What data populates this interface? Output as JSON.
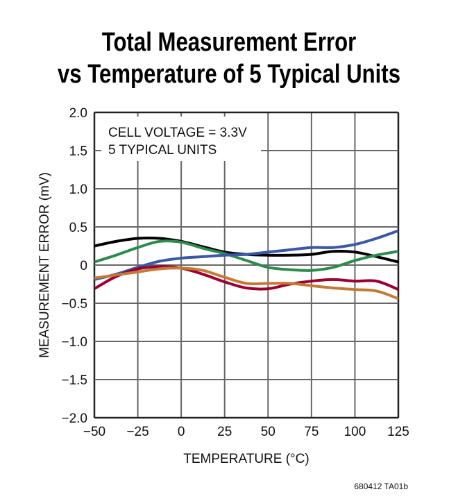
{
  "chart_data": {
    "type": "line",
    "title": [
      "Total Measurement Error",
      "vs Temperature of 5 Typical Units"
    ],
    "xlabel": "TEMPERATURE (°C)",
    "ylabel": "MEASUREMENT ERROR (mV)",
    "xlim": [
      -50,
      125
    ],
    "ylim": [
      -2.0,
      2.0
    ],
    "xticks": [
      -50,
      -25,
      0,
      25,
      50,
      75,
      100,
      125
    ],
    "xtick_labels": [
      "−50",
      "−25",
      "0",
      "25",
      "50",
      "75",
      "100",
      "125"
    ],
    "yticks": [
      2.0,
      1.5,
      1.0,
      0.5,
      0,
      -0.5,
      -1.0,
      -1.5,
      -2.0
    ],
    "ytick_labels": [
      "2.0",
      "1.5",
      "1.0",
      "0.5",
      "0",
      "−0.5",
      "−1.0",
      "−1.5",
      "−2.0"
    ],
    "grid": true,
    "annotations": [
      "CELL VOLTAGE = 3.3V",
      "5 TYPICAL UNITS"
    ],
    "figure_code": "680412 TA01b",
    "x": [
      -50,
      -37.5,
      -25,
      -12.5,
      0,
      12.5,
      25,
      37.5,
      50,
      62.5,
      75,
      87.5,
      100,
      112.5,
      125
    ],
    "series": [
      {
        "color": "#000000",
        "values": [
          0.25,
          0.31,
          0.35,
          0.35,
          0.31,
          0.24,
          0.17,
          0.14,
          0.13,
          0.13,
          0.14,
          0.18,
          0.17,
          0.11,
          0.04
        ]
      },
      {
        "color": "#2e8b4e",
        "values": [
          0.04,
          0.13,
          0.23,
          0.31,
          0.3,
          0.22,
          0.15,
          0.06,
          -0.03,
          -0.06,
          -0.07,
          -0.03,
          0.06,
          0.13,
          0.18
        ]
      },
      {
        "color": "#3a57a8",
        "values": [
          -0.19,
          -0.12,
          -0.03,
          0.05,
          0.09,
          0.11,
          0.13,
          0.14,
          0.17,
          0.2,
          0.23,
          0.23,
          0.27,
          0.35,
          0.45
        ]
      },
      {
        "color": "#9b0030",
        "values": [
          -0.31,
          -0.15,
          -0.05,
          -0.02,
          -0.04,
          -0.12,
          -0.22,
          -0.3,
          -0.31,
          -0.25,
          -0.21,
          -0.19,
          -0.21,
          -0.21,
          -0.32
        ]
      },
      {
        "color": "#c47a34",
        "values": [
          -0.17,
          -0.13,
          -0.09,
          -0.05,
          -0.04,
          -0.07,
          -0.16,
          -0.24,
          -0.24,
          -0.24,
          -0.27,
          -0.3,
          -0.32,
          -0.34,
          -0.44
        ]
      }
    ]
  }
}
